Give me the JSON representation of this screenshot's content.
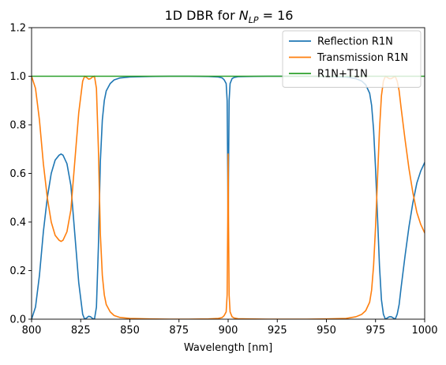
{
  "chart_data": {
    "type": "line",
    "title_prefix": "1D DBR for ",
    "title_symbol": "N",
    "title_subscript": "LP",
    "title_suffix": " = 16",
    "xlabel": "Wavelength [nm]",
    "ylabel": "",
    "xlim": [
      800,
      1000
    ],
    "ylim": [
      0,
      1.2
    ],
    "xticks": [
      800,
      825,
      850,
      875,
      900,
      925,
      950,
      975,
      1000
    ],
    "xtick_labels": [
      "800",
      "825",
      "850",
      "875",
      "900",
      "925",
      "950",
      "975",
      "1000"
    ],
    "yticks": [
      0,
      0.2,
      0.4,
      0.6,
      0.8,
      1.0,
      1.2
    ],
    "ytick_labels": [
      "0.0",
      "0.2",
      "0.4",
      "0.6",
      "0.8",
      "1.0",
      "1.2"
    ],
    "grid": false,
    "legend_position": "top-right",
    "series": [
      {
        "name": "Reflection R1N",
        "color": "#1f77b4",
        "x": [
          800,
          802,
          804,
          806,
          808,
          810,
          812,
          814,
          815,
          816,
          818,
          820,
          822,
          824,
          826,
          827,
          828,
          829,
          830,
          831,
          832,
          833,
          834,
          835,
          836,
          837,
          838,
          840,
          842,
          845,
          850,
          860,
          870,
          880,
          890,
          895,
          897,
          898,
          899,
          899.5,
          899.8,
          900,
          900.2,
          900.5,
          901,
          902,
          903,
          905,
          910,
          920,
          930,
          940,
          950,
          960,
          965,
          968,
          970,
          972,
          973,
          974,
          975,
          976,
          977,
          978,
          979,
          980,
          981,
          982,
          983,
          984,
          985,
          986,
          987,
          988,
          990,
          992,
          994,
          996,
          998,
          1000
        ],
        "y": [
          0.0,
          0.05,
          0.18,
          0.36,
          0.5,
          0.6,
          0.655,
          0.675,
          0.68,
          0.675,
          0.64,
          0.55,
          0.35,
          0.15,
          0.02,
          0.0,
          0.005,
          0.012,
          0.01,
          0.003,
          0.0,
          0.05,
          0.3,
          0.65,
          0.82,
          0.9,
          0.94,
          0.97,
          0.985,
          0.993,
          0.997,
          0.999,
          1.0,
          1.0,
          0.999,
          0.997,
          0.993,
          0.985,
          0.97,
          0.9,
          0.6,
          0.32,
          0.6,
          0.9,
          0.97,
          0.99,
          0.995,
          0.998,
          0.999,
          1.0,
          1.0,
          1.0,
          0.999,
          0.997,
          0.99,
          0.98,
          0.965,
          0.93,
          0.88,
          0.78,
          0.62,
          0.42,
          0.22,
          0.08,
          0.02,
          0.0,
          0.005,
          0.01,
          0.01,
          0.005,
          0.0,
          0.02,
          0.06,
          0.13,
          0.26,
          0.38,
          0.48,
          0.56,
          0.61,
          0.645
        ]
      },
      {
        "name": "Transmission R1N",
        "color": "#ff7f0e",
        "x": [
          800,
          802,
          804,
          806,
          808,
          810,
          812,
          814,
          815,
          816,
          818,
          820,
          822,
          824,
          826,
          827,
          828,
          829,
          830,
          831,
          832,
          833,
          834,
          835,
          836,
          837,
          838,
          840,
          842,
          845,
          850,
          860,
          870,
          880,
          890,
          895,
          897,
          898,
          899,
          899.5,
          899.8,
          900,
          900.2,
          900.5,
          901,
          902,
          903,
          905,
          910,
          920,
          930,
          940,
          950,
          960,
          965,
          968,
          970,
          972,
          973,
          974,
          975,
          976,
          977,
          978,
          979,
          980,
          981,
          982,
          983,
          984,
          985,
          986,
          987,
          988,
          990,
          992,
          994,
          996,
          998,
          1000
        ],
        "y": [
          1.0,
          0.95,
          0.82,
          0.64,
          0.5,
          0.4,
          0.345,
          0.325,
          0.32,
          0.325,
          0.36,
          0.45,
          0.65,
          0.85,
          0.98,
          1.0,
          0.995,
          0.988,
          0.99,
          0.997,
          1.0,
          0.95,
          0.7,
          0.35,
          0.18,
          0.1,
          0.06,
          0.03,
          0.015,
          0.007,
          0.003,
          0.001,
          0.0,
          0.0,
          0.001,
          0.003,
          0.007,
          0.015,
          0.03,
          0.1,
          0.4,
          0.68,
          0.4,
          0.1,
          0.03,
          0.01,
          0.005,
          0.002,
          0.001,
          0.0,
          0.0,
          0.0,
          0.001,
          0.003,
          0.01,
          0.02,
          0.035,
          0.07,
          0.12,
          0.22,
          0.38,
          0.58,
          0.78,
          0.92,
          0.98,
          1.0,
          0.995,
          0.99,
          0.99,
          0.995,
          1.0,
          0.98,
          0.94,
          0.87,
          0.74,
          0.62,
          0.52,
          0.44,
          0.39,
          0.355
        ]
      },
      {
        "name": "R1N+T1N",
        "color": "#2ca02c",
        "x": [
          800,
          1000
        ],
        "y": [
          1.0,
          1.0
        ]
      }
    ]
  }
}
